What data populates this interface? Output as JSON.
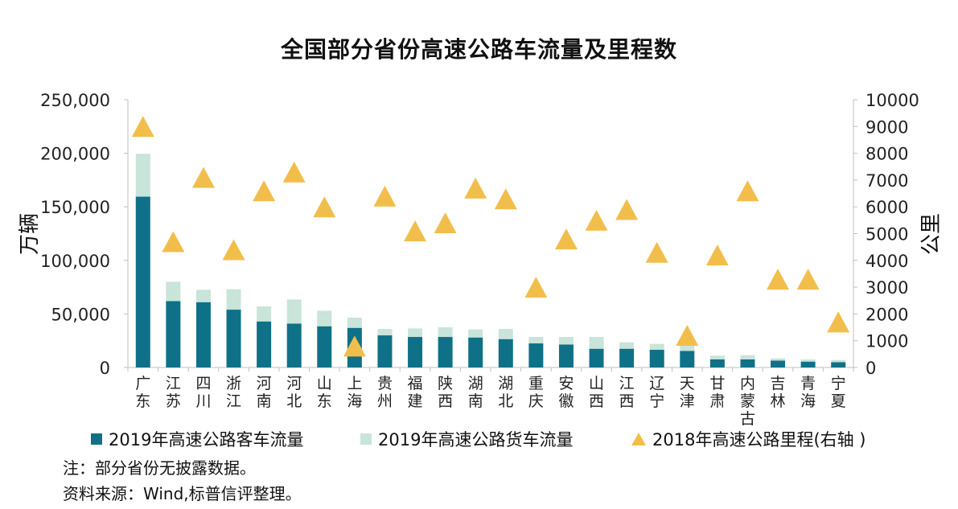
{
  "colors": {
    "passenger": "#0F7187",
    "freight": "#C9E4D9",
    "mileage": "#F2BE4B",
    "axis": "#BFBFBF"
  },
  "chart_data": {
    "type": "bar",
    "title": "全国部分省份高速公路车流量及里程数",
    "categories": [
      "广东",
      "江苏",
      "四川",
      "浙江",
      "河南",
      "河北",
      "山东",
      "上海",
      "贵州",
      "福建",
      "陕西",
      "湖南",
      "湖北",
      "重庆",
      "安徽",
      "山西",
      "江西",
      "辽宁",
      "天津",
      "甘肃",
      "内蒙古",
      "吉林",
      "青海",
      "宁夏"
    ],
    "category_labels": [
      [
        "广",
        "东"
      ],
      [
        "江",
        "苏"
      ],
      [
        "四",
        "川"
      ],
      [
        "浙",
        "江"
      ],
      [
        "河",
        "南"
      ],
      [
        "河",
        "北"
      ],
      [
        "山",
        "东"
      ],
      [
        "上",
        "海"
      ],
      [
        "贵",
        "州"
      ],
      [
        "福",
        "建"
      ],
      [
        "陕",
        "西"
      ],
      [
        "湖",
        "南"
      ],
      [
        "湖",
        "北"
      ],
      [
        "重",
        "庆"
      ],
      [
        "安",
        "徽"
      ],
      [
        "山",
        "西"
      ],
      [
        "江",
        "西"
      ],
      [
        "辽",
        "宁"
      ],
      [
        "天",
        "津"
      ],
      [
        "甘",
        "肃"
      ],
      [
        "内",
        "蒙",
        "古"
      ],
      [
        "吉",
        "林"
      ],
      [
        "青",
        "海"
      ],
      [
        "宁",
        "夏"
      ]
    ],
    "stacked": true,
    "series": [
      {
        "name": "2019年高速公路客车流量",
        "type": "bar",
        "axis": "left",
        "values": [
          159500,
          62000,
          61000,
          54000,
          43000,
          41000,
          38500,
          37000,
          30000,
          28500,
          28500,
          28000,
          26500,
          22500,
          21500,
          17500,
          17500,
          16500,
          15500,
          7500,
          7500,
          6500,
          5500,
          5000
        ]
      },
      {
        "name": "2019年高速公路货车流量",
        "type": "bar",
        "axis": "left",
        "values": [
          40000,
          18000,
          11500,
          19000,
          14000,
          22500,
          14500,
          9500,
          6000,
          8000,
          9000,
          7500,
          9500,
          6000,
          7000,
          11000,
          6000,
          5500,
          6500,
          3500,
          4000,
          2000,
          2000,
          2000
        ]
      },
      {
        "name": "2018年高速公路里程(右轴 )",
        "type": "scatter",
        "marker": "triangle",
        "axis": "right",
        "values": [
          9000,
          4700,
          7100,
          4400,
          6600,
          7300,
          6000,
          800,
          6400,
          5100,
          5400,
          6700,
          6300,
          3000,
          4800,
          5500,
          5900,
          4300,
          1200,
          4200,
          6600,
          3300,
          3300,
          1700
        ]
      }
    ],
    "y_left": {
      "label": "万辆",
      "lim": [
        0,
        250000
      ],
      "ticks": [
        0,
        50000,
        100000,
        150000,
        200000,
        250000
      ],
      "tick_labels": [
        "0",
        "50,000",
        "100,000",
        "150,000",
        "200,000",
        "250,000"
      ]
    },
    "y_right": {
      "label": "公里",
      "lim": [
        0,
        10000
      ],
      "ticks": [
        0,
        1000,
        2000,
        3000,
        4000,
        5000,
        6000,
        7000,
        8000,
        9000,
        10000
      ],
      "tick_labels": [
        "0",
        "1000",
        "2000",
        "3000",
        "4000",
        "5000",
        "6000",
        "7000",
        "8000",
        "9000",
        "10000"
      ]
    },
    "legend_position": "bottom",
    "grid": false
  },
  "legend": {
    "passenger": "2019年高速公路客车流量",
    "freight": "2019年高速公路货车流量",
    "mileage": "2018年高速公路里程(右轴 )"
  },
  "notes": {
    "note": "注：部分省份无披露数据。",
    "source": "资料来源：Wind,标普信评整理。"
  }
}
